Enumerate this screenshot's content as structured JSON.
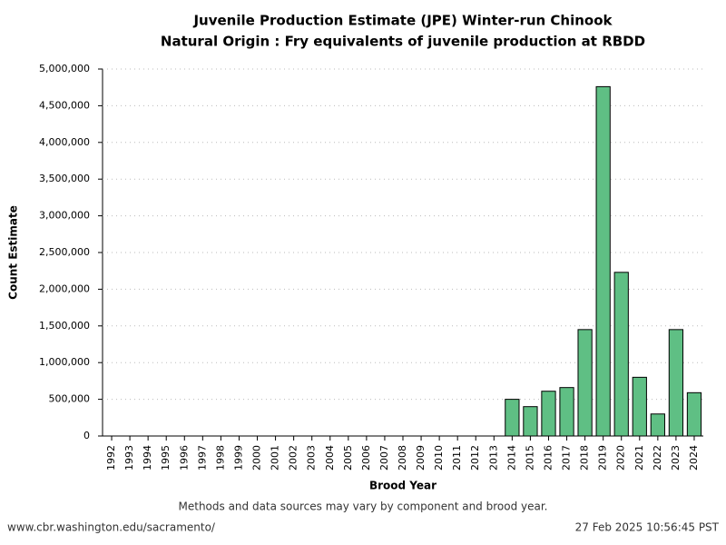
{
  "chart_data": {
    "type": "bar",
    "title": "Juvenile Production Estimate (JPE) Winter-run Chinook",
    "subtitle": "Natural Origin : Fry equivalents of juvenile production at RBDD",
    "x_label": "Brood Year",
    "y_label": "Count Estimate",
    "categories": [
      "1992",
      "1993",
      "1994",
      "1995",
      "1996",
      "1997",
      "1998",
      "1999",
      "2000",
      "2001",
      "2002",
      "2003",
      "2004",
      "2005",
      "2006",
      "2007",
      "2008",
      "2009",
      "2010",
      "2011",
      "2012",
      "2013",
      "2014",
      "2015",
      "2016",
      "2017",
      "2018",
      "2019",
      "2020",
      "2021",
      "2022",
      "2023",
      "2024"
    ],
    "values": [
      null,
      null,
      null,
      null,
      null,
      null,
      null,
      null,
      null,
      null,
      null,
      null,
      null,
      null,
      null,
      null,
      null,
      null,
      null,
      null,
      null,
      null,
      500000,
      400000,
      610000,
      660000,
      1450000,
      4760000,
      2230000,
      800000,
      300000,
      1450000,
      590000
    ],
    "color": "#5fbf84",
    "ylim": [
      0,
      5000000
    ],
    "yticks": [
      0,
      {
        "value": 500000,
        "label": "500,000"
      },
      {
        "value": 1000000,
        "label": "1,000,000"
      },
      {
        "value": 1500000,
        "label": "1,500,000"
      },
      {
        "value": 2000000,
        "label": "2,000,000"
      },
      {
        "value": 2500000,
        "label": "2,500,000"
      },
      {
        "value": 3000000,
        "label": "3,000,000"
      },
      {
        "value": 3500000,
        "label": "3,500,000"
      },
      {
        "value": 4000000,
        "label": "4,000,000"
      },
      {
        "value": 4500000,
        "label": "4,500,000"
      },
      {
        "value": 5000000,
        "label": "5,000,000"
      }
    ],
    "grid": true,
    "note": "Methods and data sources may vary by component and brood year.",
    "source": "www.cbr.washington.edu/sacramento/",
    "timestamp": "27 Feb 2025 10:56:45 PST"
  }
}
